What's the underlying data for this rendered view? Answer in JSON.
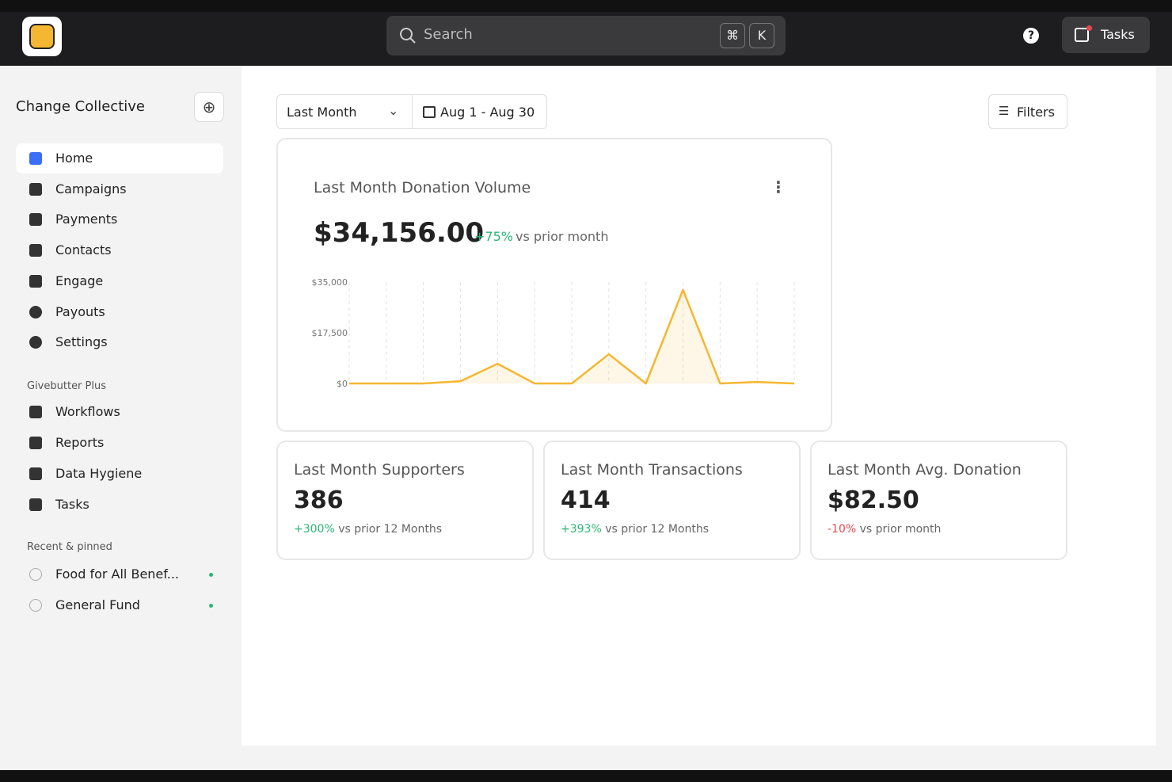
{
  "header": {
    "search_placeholder": "Search",
    "shortcut_keys": [
      "⌘",
      "K"
    ],
    "tasks_button": "Tasks"
  },
  "sidebar": {
    "org_name": "Change Collective",
    "nav": [
      "Home",
      "Campaigns",
      "Payments",
      "Contacts",
      "Engage",
      "Payouts",
      "Settings"
    ],
    "plus_section": {
      "title": "Givebutter Plus",
      "items": [
        "Workflows",
        "Reports",
        "Data Hygiene",
        "Tasks"
      ]
    },
    "recent_section": {
      "title": "Recent & pinned",
      "items": [
        "Food for All Benef...",
        "General Fund"
      ]
    }
  },
  "toolbar": {
    "period": "Last Month",
    "date_range": "Aug 1 - Aug 30",
    "filters": "Filters"
  },
  "donation_card": {
    "title": "Last Month Donation Volume",
    "total": "$34,156.00",
    "change": "+75%",
    "change_note": "vs prior month"
  },
  "chart_data": {
    "type": "line",
    "categories": [
      null,
      null,
      null,
      null,
      null,
      null,
      null,
      null,
      null,
      null,
      null,
      null,
      null
    ],
    "series": [
      {
        "color": "#f5b731",
        "values": [
          0,
          0,
          0,
          800,
          6800,
          0,
          0,
          10100,
          0,
          32300,
          0,
          500,
          0
        ]
      }
    ],
    "ylim": [
      0,
      35000
    ],
    "yticks": [
      {
        "value": 0,
        "label": "$0"
      },
      {
        "value": 17500,
        "label": "$17,500"
      },
      {
        "value": 35000,
        "label": "$35,000"
      }
    ],
    "grid": true
  },
  "stats": [
    {
      "title": "Last Month Supporters",
      "value": "386",
      "change": "+300%",
      "note": "vs prior 12 Months"
    },
    {
      "title": "Last Month Transactions",
      "value": "414",
      "change": "+393%",
      "note": "vs prior 12 Months"
    },
    {
      "title": "Last Month Avg. Donation",
      "value": "$82.50",
      "change": "-10%",
      "note": "vs prior month"
    }
  ]
}
